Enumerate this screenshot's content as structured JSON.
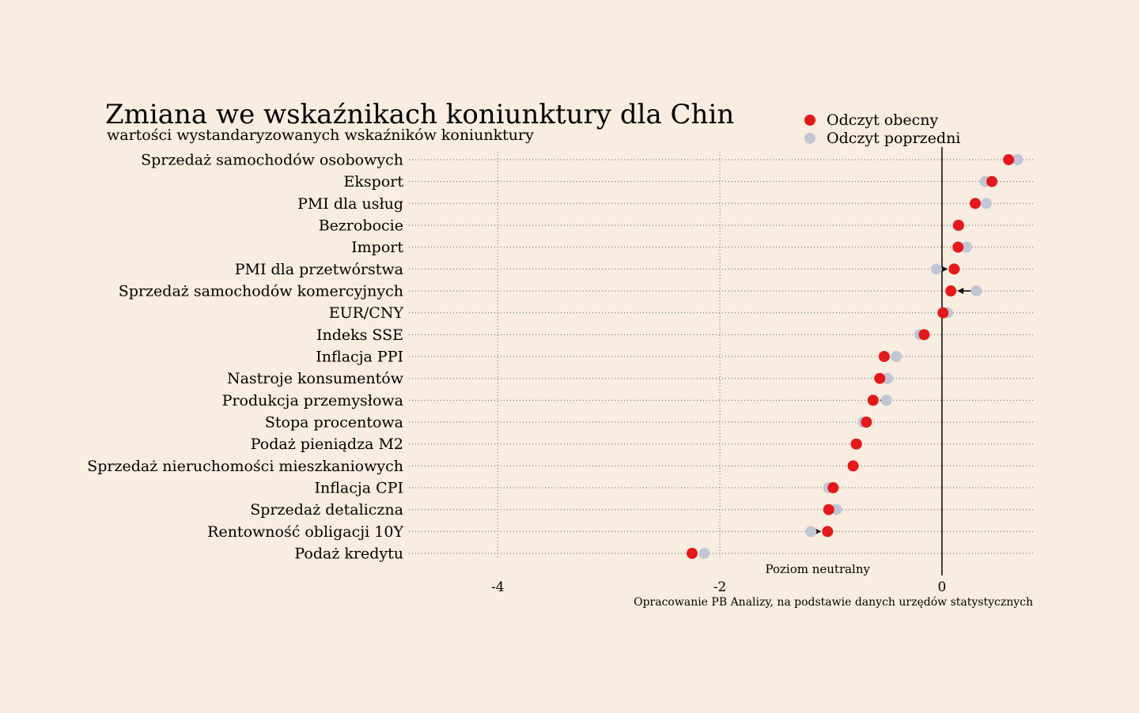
{
  "chart_data": {
    "type": "dot-arrow",
    "title": "Zmiana we wskaźnikach koniunktury dla Chin",
    "subtitle": "wartości wystandaryzowanych wskaźników koniunktury",
    "source": "Opracowanie PB Analizy, na podstawie danych urzędów statystycznych",
    "neutral_label": "Poziom neutralny",
    "legend": {
      "current": "Odczyt obecny",
      "previous": "Odczyt poprzedni",
      "placement": "top-right"
    },
    "colors": {
      "current": "#e3191b",
      "previous": "#c2c6d4",
      "background": "#f9ece0",
      "grid": "#666666"
    },
    "xlim": [
      -4.8,
      0.82
    ],
    "xticks": [
      -4,
      -2,
      0
    ],
    "xtick_labels": [
      "-4",
      "-2",
      "0"
    ],
    "grid": "dotted",
    "categories": [
      "Sprzedaż samochodów osobowych",
      "Eksport",
      "PMI dla usług",
      "Bezrobocie",
      "Import",
      "PMI dla przetwórstwa",
      "Sprzedaż samochodów komercyjnych",
      "EUR/CNY",
      "Indeks SSE",
      "Inflacja PPI",
      "Nastroje konsumentów",
      "Produkcja przemysłowa",
      "Stopa procentowa",
      "Podaż pieniądza M2",
      "Sprzedaż nieruchomości mieszkaniowych",
      "Inflacja CPI",
      "Sprzedaż detaliczna",
      "Rentowność obligacji 10Y",
      "Podaż kredytu"
    ],
    "series": [
      {
        "name": "Odczyt obecny",
        "values": [
          0.6,
          0.45,
          0.3,
          0.15,
          0.145,
          0.11,
          0.08,
          0.01,
          -0.16,
          -0.52,
          -0.56,
          -0.62,
          -0.68,
          -0.77,
          -0.8,
          -0.98,
          -1.02,
          -1.03,
          -2.25
        ]
      },
      {
        "name": "Odczyt poprzedni",
        "values": [
          0.68,
          0.39,
          0.4,
          0.14,
          0.22,
          -0.05,
          0.31,
          0.05,
          -0.2,
          -0.41,
          -0.49,
          -0.5,
          -0.71,
          -0.78,
          -0.8,
          -1.02,
          -0.95,
          -1.18,
          -2.14
        ]
      }
    ]
  }
}
